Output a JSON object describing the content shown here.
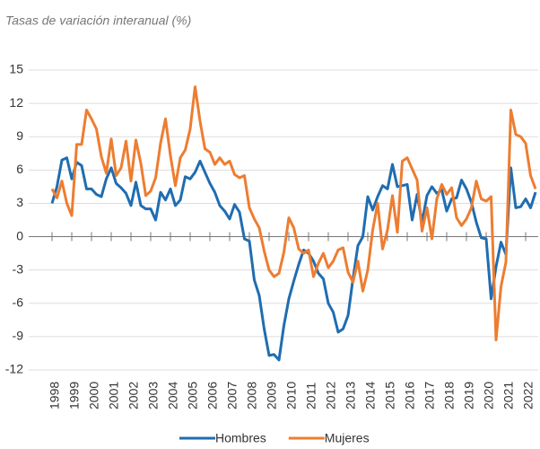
{
  "chart_data": {
    "type": "line",
    "title": "Tasas de variación interanual (%)",
    "categories": [
      "1998",
      null,
      null,
      null,
      "1999",
      null,
      null,
      null,
      "2000",
      null,
      null,
      null,
      "2001",
      null,
      null,
      null,
      "2002",
      null,
      null,
      null,
      "2003",
      null,
      null,
      null,
      "2004",
      null,
      null,
      null,
      "2005",
      null,
      null,
      null,
      "2006",
      null,
      null,
      null,
      "2007",
      null,
      null,
      null,
      "2008",
      null,
      null,
      null,
      "2009",
      null,
      null,
      null,
      "2010",
      null,
      null,
      null,
      "2011",
      null,
      null,
      null,
      "2012",
      null,
      null,
      null,
      "2013",
      null,
      null,
      null,
      "2014",
      null,
      null,
      null,
      "2015",
      null,
      null,
      null,
      "2016",
      null,
      null,
      null,
      "2017",
      null,
      null,
      null,
      "2018",
      null,
      null,
      null,
      "2019",
      null,
      null,
      null,
      "2020",
      null,
      null,
      null,
      "2021",
      null,
      null,
      null,
      "2022",
      null,
      null
    ],
    "series": [
      {
        "name": "Hombres",
        "color": "#1f6db1",
        "values": [
          3,
          4.5,
          6.9,
          7.1,
          5.2,
          6.7,
          6.4,
          4.3,
          4.3,
          3.8,
          3.6,
          5.2,
          6.2,
          4.8,
          4.4,
          3.9,
          2.8,
          4.9,
          2.8,
          2.5,
          2.5,
          1.5,
          4.0,
          3.3,
          4.3,
          2.8,
          3.3,
          5.4,
          5.2,
          5.8,
          6.8,
          5.8,
          4.8,
          4.0,
          2.8,
          2.3,
          1.6,
          2.9,
          2.2,
          -0.2,
          -0.4,
          -3.9,
          -5.3,
          -8.3,
          -10.7,
          -10.6,
          -11.1,
          -8.0,
          -5.6,
          -4.0,
          -2.5,
          -1.2,
          -1.5,
          -2.2,
          -3.3,
          -3.8,
          -6.0,
          -6.8,
          -8.6,
          -8.3,
          -7.1,
          -3.8,
          -0.8,
          0.0,
          3.6,
          2.4,
          3.6,
          4.6,
          4.3,
          6.5,
          4.5,
          4.6,
          4.7,
          1.5,
          3.8,
          1.3,
          3.7,
          4.5,
          3.9,
          4.2,
          2.3,
          3.4,
          3.5,
          5.1,
          4.3,
          3.1,
          1.3,
          -0.1,
          -0.2,
          -5.6,
          -2.7,
          -0.5,
          -1.6,
          6.2,
          2.6,
          2.7,
          3.4,
          2.6,
          4.0
        ]
      },
      {
        "name": "Mujeres",
        "color": "#ed7d31",
        "values": [
          4.3,
          3.5,
          5.0,
          3.0,
          1.9,
          8.3,
          8.3,
          11.4,
          10.6,
          9.7,
          7.2,
          5.7,
          8.8,
          5.5,
          6.2,
          8.6,
          5.0,
          8.7,
          6.6,
          3.7,
          4.1,
          5.3,
          8.4,
          10.6,
          7.3,
          4.6,
          7.1,
          7.8,
          9.7,
          13.5,
          10.4,
          7.9,
          7.6,
          6.5,
          7.1,
          6.5,
          6.8,
          5.6,
          5.3,
          5.5,
          2.6,
          1.6,
          0.8,
          -1.3,
          -3.0,
          -3.6,
          -3.3,
          -1.4,
          1.7,
          0.8,
          -1.1,
          -1.5,
          -1.2,
          -3.6,
          -2.4,
          -1.5,
          -2.8,
          -2.2,
          -1.2,
          -1.0,
          -3.2,
          -4.1,
          -2.2,
          -4.9,
          -3.0,
          0.6,
          3.0,
          -1.1,
          0.6,
          3.7,
          0.4,
          6.8,
          7.1,
          6.1,
          5.1,
          0.5,
          2.6,
          -0.2,
          3.4,
          4.7,
          3.8,
          4.4,
          1.7,
          1.0,
          1.6,
          2.6,
          5.0,
          3.4,
          3.2,
          3.6,
          -9.3,
          -4.5,
          -2.3,
          11.4,
          9.2,
          9.0,
          8.4,
          5.5,
          4.3
        ]
      }
    ],
    "ylim": [
      -12,
      15
    ],
    "yticks": [
      -12,
      -9,
      -6,
      -3,
      0,
      3,
      6,
      9,
      12,
      15
    ],
    "grid": true,
    "legend": "bottom"
  }
}
